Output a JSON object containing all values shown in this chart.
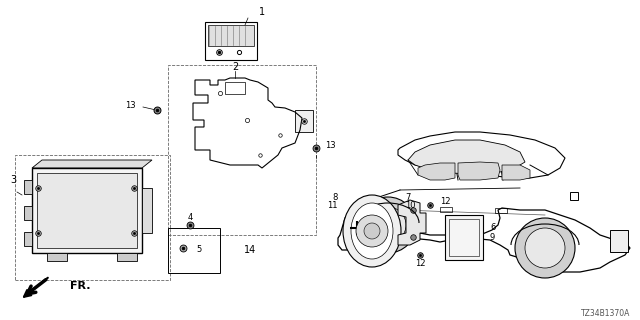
{
  "bg_color": "#ffffff",
  "diagram_code": "TZ34B1370A",
  "fr_label": "FR.",
  "figsize": [
    6.4,
    3.2
  ],
  "dpi": 100
}
